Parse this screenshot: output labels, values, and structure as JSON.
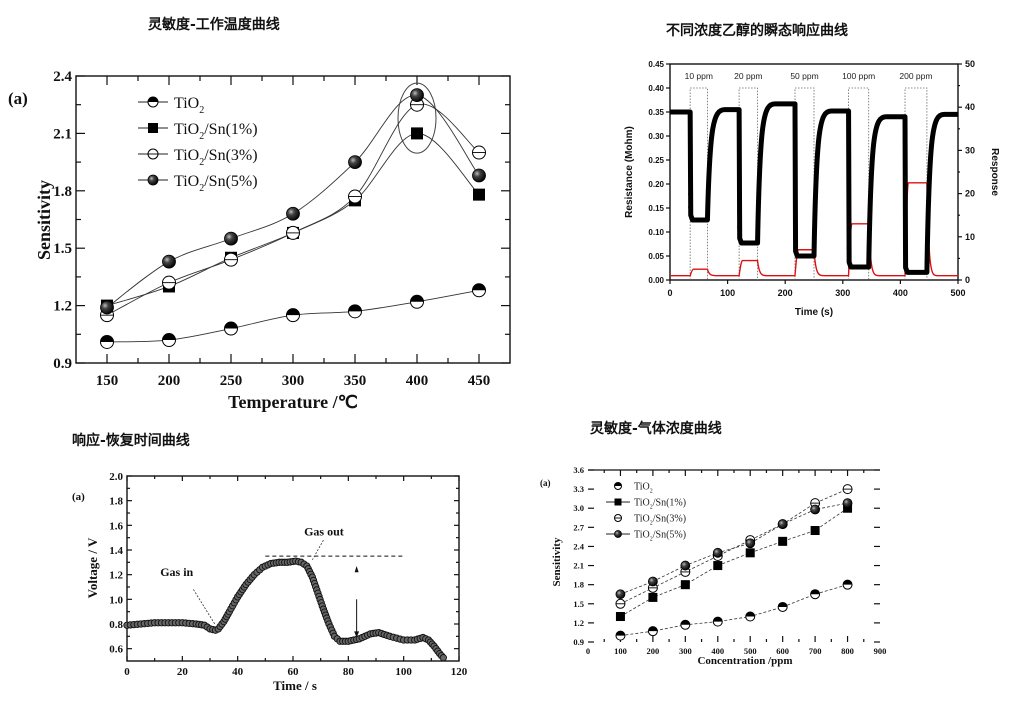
{
  "page_titles": {
    "top_left": "灵敏度-工作温度曲线",
    "top_right": "不同浓度乙醇的瞬态响应曲线",
    "bottom_left": "响应-恢复时间曲线",
    "bottom_right": "灵敏度-气体浓度曲线"
  },
  "chart_data": [
    {
      "id": "sensitivity-vs-temperature",
      "type": "line",
      "panel_label": "(a)",
      "title": "灵敏度-工作温度曲线",
      "xlabel": "Temperature /℃",
      "ylabel": "Sensitivity",
      "xlim": [
        125,
        475
      ],
      "ylim": [
        0.9,
        2.4
      ],
      "xticks": [
        "150",
        "200",
        "250",
        "300",
        "350",
        "400",
        "450"
      ],
      "yticks": [
        "0.9",
        "1.2",
        "1.5",
        "1.8",
        "2.1",
        "2.4"
      ],
      "x": [
        150,
        200,
        250,
        300,
        350,
        400,
        450
      ],
      "legend_position": "top-left",
      "annotation": "ellipse around 400 ℃ peak",
      "series": [
        {
          "name": "TiO2",
          "label_main": "TiO",
          "label_sub": "2",
          "label_tail": "",
          "marker": "half-filled-circle",
          "values": [
            1.01,
            1.02,
            1.08,
            1.15,
            1.17,
            1.22,
            1.28
          ]
        },
        {
          "name": "TiO2/Sn(1%)",
          "label_main": "TiO",
          "label_sub": "2",
          "label_tail": "/Sn(1%)",
          "marker": "filled-square",
          "values": [
            1.2,
            1.3,
            1.45,
            1.58,
            1.75,
            2.1,
            1.78
          ]
        },
        {
          "name": "TiO2/Sn(3%)",
          "label_main": "TiO",
          "label_sub": "2",
          "label_tail": "/Sn(3%)",
          "marker": "open-circle-line",
          "values": [
            1.15,
            1.32,
            1.44,
            1.58,
            1.77,
            2.25,
            2.0
          ]
        },
        {
          "name": "TiO2/Sn(5%)",
          "label_main": "TiO",
          "label_sub": "2",
          "label_tail": "/Sn(5%)",
          "marker": "shaded-sphere",
          "values": [
            1.19,
            1.43,
            1.55,
            1.68,
            1.95,
            2.3,
            1.88
          ]
        }
      ]
    },
    {
      "id": "transient-response-ethanol",
      "type": "line",
      "title": "不同浓度乙醇的瞬态响应曲线",
      "xlabel": "Time (s)",
      "ylabel": "Resistance (Mohm)",
      "ylabel_right": "Response",
      "xlim": [
        0,
        500
      ],
      "ylim": [
        0.0,
        0.45
      ],
      "ylim_right": [
        0,
        50
      ],
      "xticks": [
        "0",
        "100",
        "200",
        "300",
        "400",
        "500"
      ],
      "yticks": [
        "0.00",
        "0.05",
        "0.10",
        "0.15",
        "0.20",
        "0.25",
        "0.30",
        "0.35",
        "0.40",
        "0.45"
      ],
      "yticks_right": [
        "0",
        "10",
        "20",
        "30",
        "40",
        "50"
      ],
      "pulses": [
        {
          "label": "10 ppm",
          "start": 35,
          "end": 65,
          "resistance_low": 0.125,
          "resistance_recovered": 0.355,
          "response": 2.5
        },
        {
          "label": "20 ppm",
          "start": 120,
          "end": 152,
          "resistance_low": 0.077,
          "resistance_recovered": 0.367,
          "response": 4.5
        },
        {
          "label": "50 ppm",
          "start": 217,
          "end": 250,
          "resistance_low": 0.05,
          "resistance_recovered": 0.352,
          "response": 7
        },
        {
          "label": "100 ppm",
          "start": 310,
          "end": 345,
          "resistance_low": 0.027,
          "resistance_recovered": 0.34,
          "response": 13
        },
        {
          "label": "200 ppm",
          "start": 408,
          "end": 446,
          "resistance_low": 0.016,
          "resistance_recovered": 0.345,
          "response": 22.5
        }
      ],
      "baseline_resistance": 0.35,
      "baseline_response": 1,
      "series": [
        {
          "name": "Resistance",
          "color": "#000000",
          "axis": "left"
        },
        {
          "name": "Response",
          "color": "#e01010",
          "axis": "right"
        }
      ]
    },
    {
      "id": "response-recovery-time",
      "type": "scatter",
      "panel_label": "(a)",
      "title": "响应-恢复时间曲线",
      "xlabel": "Time / s",
      "ylabel": "Voltage / V",
      "xlim": [
        0,
        120
      ],
      "ylim": [
        0.5,
        2.0
      ],
      "xticks": [
        "0",
        "20",
        "40",
        "60",
        "80",
        "100",
        "120"
      ],
      "yticks": [
        "0.6",
        "0.8",
        "1.0",
        "1.2",
        "1.4",
        "1.6",
        "1.8",
        "2.0"
      ],
      "annotations": [
        "Gas in",
        "Gas out"
      ],
      "reference_line": {
        "y": 1.35,
        "x_from": 50,
        "x_to": 100
      },
      "points": [
        [
          0,
          0.79
        ],
        [
          5,
          0.8
        ],
        [
          10,
          0.81
        ],
        [
          15,
          0.81
        ],
        [
          20,
          0.81
        ],
        [
          25,
          0.8
        ],
        [
          28,
          0.79
        ],
        [
          30,
          0.76
        ],
        [
          32,
          0.75
        ],
        [
          33,
          0.76
        ],
        [
          35,
          0.82
        ],
        [
          37,
          0.9
        ],
        [
          40,
          1.02
        ],
        [
          43,
          1.12
        ],
        [
          46,
          1.2
        ],
        [
          49,
          1.26
        ],
        [
          52,
          1.29
        ],
        [
          55,
          1.3
        ],
        [
          58,
          1.3
        ],
        [
          61,
          1.31
        ],
        [
          63,
          1.3
        ],
        [
          65,
          1.27
        ],
        [
          67,
          1.18
        ],
        [
          69,
          1.05
        ],
        [
          71,
          0.92
        ],
        [
          73,
          0.8
        ],
        [
          75,
          0.7
        ],
        [
          77,
          0.66
        ],
        [
          80,
          0.66
        ],
        [
          84,
          0.68
        ],
        [
          88,
          0.72
        ],
        [
          91,
          0.73
        ],
        [
          95,
          0.7
        ],
        [
          100,
          0.67
        ],
        [
          104,
          0.67
        ],
        [
          107,
          0.69
        ],
        [
          109,
          0.67
        ],
        [
          111,
          0.62
        ],
        [
          113,
          0.56
        ],
        [
          115,
          0.51
        ]
      ]
    },
    {
      "id": "sensitivity-vs-concentration",
      "type": "line",
      "panel_label": "(a)",
      "title": "灵敏度-气体浓度曲线",
      "xlabel": "Concentration /ppm",
      "ylabel": "Sensitivity",
      "xlim": [
        0,
        900
      ],
      "ylim": [
        0.9,
        3.6
      ],
      "xticks": [
        "0",
        "100",
        "200",
        "300",
        "400",
        "500",
        "600",
        "700",
        "800",
        "900"
      ],
      "yticks": [
        "0.9",
        "1.2",
        "1.5",
        "1.8",
        "2.1",
        "2.4",
        "2.7",
        "3.0",
        "3.3",
        "3.6"
      ],
      "x": [
        100,
        200,
        300,
        400,
        500,
        600,
        700,
        800
      ],
      "legend_position": "top-left",
      "series": [
        {
          "name": "TiO2",
          "label_main": "TiO",
          "label_sub": "2",
          "label_tail": "",
          "marker": "half-filled-circle",
          "values": [
            1.0,
            1.07,
            1.17,
            1.22,
            1.3,
            1.45,
            1.65,
            1.8
          ]
        },
        {
          "name": "TiO2/Sn(1%)",
          "label_main": "TiO",
          "label_sub": "2",
          "label_tail": "/Sn(1%)",
          "marker": "filled-square",
          "values": [
            1.3,
            1.6,
            1.8,
            2.1,
            2.3,
            2.48,
            2.65,
            3.0
          ]
        },
        {
          "name": "TiO2/Sn(3%)",
          "label_main": "TiO",
          "label_sub": "2",
          "label_tail": "/Sn(3%)",
          "marker": "open-circle-line",
          "values": [
            1.5,
            1.75,
            2.0,
            2.25,
            2.5,
            2.75,
            3.08,
            3.3
          ]
        },
        {
          "name": "TiO2/Sn(5%)",
          "label_main": "TiO",
          "label_sub": "2",
          "label_tail": "/Sn(5%)",
          "marker": "shaded-sphere",
          "values": [
            1.65,
            1.85,
            2.1,
            2.3,
            2.45,
            2.75,
            2.98,
            3.08
          ]
        }
      ]
    }
  ]
}
